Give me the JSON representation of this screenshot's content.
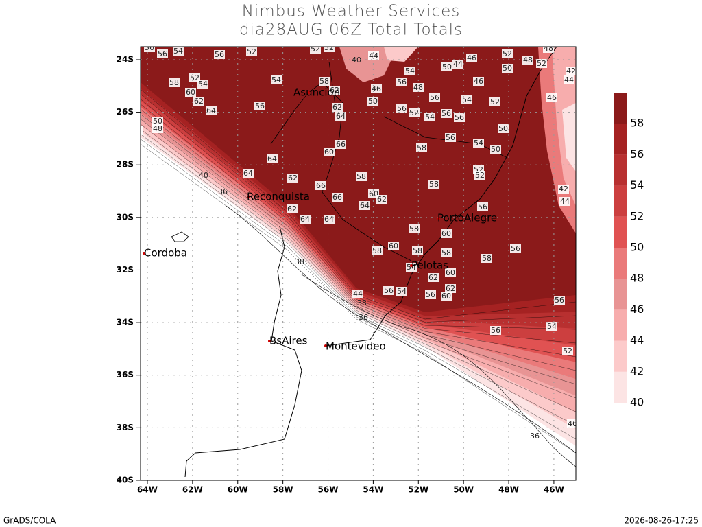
{
  "header": {
    "title": "Nimbus Weather Services",
    "subtitle": "dia28AUG 06Z Total Totals"
  },
  "map": {
    "lat_ticks": [
      {
        "value": -24,
        "label": "24S"
      },
      {
        "value": -26,
        "label": "26S"
      },
      {
        "value": -28,
        "label": "28S"
      },
      {
        "value": -30,
        "label": "30S"
      },
      {
        "value": -32,
        "label": "32S"
      },
      {
        "value": -34,
        "label": "34S"
      },
      {
        "value": -36,
        "label": "36S"
      },
      {
        "value": -38,
        "label": "38S"
      },
      {
        "value": -40,
        "label": "40S"
      }
    ],
    "lon_ticks": [
      {
        "value": -64,
        "label": "64W"
      },
      {
        "value": -62,
        "label": "62W"
      },
      {
        "value": -60,
        "label": "60W"
      },
      {
        "value": -58,
        "label": "58W"
      },
      {
        "value": -56,
        "label": "56W"
      },
      {
        "value": -54,
        "label": "54W"
      },
      {
        "value": -52,
        "label": "52W"
      },
      {
        "value": -50,
        "label": "50W"
      },
      {
        "value": -48,
        "label": "48W"
      },
      {
        "value": -46,
        "label": "46W"
      }
    ],
    "cities": [
      "Asuncion",
      "Reconquista",
      "PortoAlegre",
      "Pelotas",
      "Cordoba",
      "BsAires",
      "Montevideo"
    ],
    "contour_labels": [
      56,
      56,
      54,
      56,
      52,
      52,
      52,
      40,
      44,
      54,
      56,
      48,
      50,
      44,
      46,
      52,
      50,
      48,
      52,
      48,
      42,
      44,
      58,
      52,
      54,
      60,
      62,
      64,
      56,
      54,
      58,
      62,
      62,
      64,
      46,
      50,
      56,
      52,
      54,
      56,
      56,
      56,
      54,
      46,
      52,
      46,
      50,
      48,
      42,
      38,
      50,
      56,
      54,
      50,
      66,
      60,
      58,
      52,
      52,
      64,
      64,
      62,
      66,
      58,
      58,
      42,
      44,
      40,
      36,
      66,
      60,
      62,
      64,
      62,
      64,
      64,
      56,
      58,
      60,
      60,
      58,
      58,
      58,
      56,
      58,
      38,
      54,
      60,
      62,
      62,
      56,
      54,
      44,
      38,
      60,
      56,
      56,
      36,
      56,
      54,
      52,
      46,
      36
    ]
  },
  "colorbar": {
    "levels": [
      40,
      42,
      44,
      46,
      48,
      50,
      52,
      54,
      56,
      58
    ],
    "colors": [
      "#fce4e4",
      "#fccaca",
      "#f7adad",
      "#e89494",
      "#ea7a7a",
      "#e05252",
      "#cc3f3f",
      "#b83030",
      "#a52222",
      "#8b1a1a"
    ]
  },
  "footer": {
    "left": "GrADS/COLA",
    "right": "2026-08-26-17:25"
  }
}
